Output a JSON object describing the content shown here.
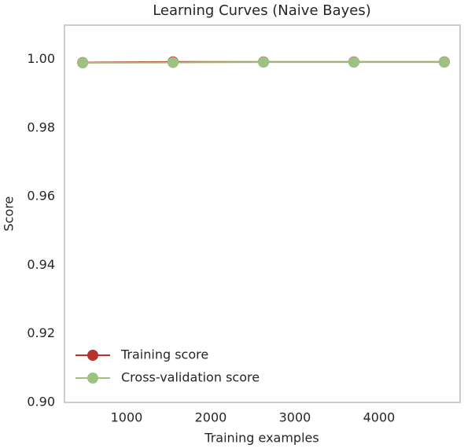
{
  "chart_data": {
    "type": "line",
    "title": "Learning Curves (Naive Bayes)",
    "x_label": "Training examples",
    "y_label": "Score",
    "x": [
      478,
      1552,
      2627,
      3701,
      4776
    ],
    "series": [
      {
        "name": "Training score",
        "color": "#b8322a",
        "values": [
          0.9991,
          0.9993,
          0.9993,
          0.9993,
          0.9993
        ]
      },
      {
        "name": "Cross-validation score",
        "color": "#9dc183",
        "values": [
          0.999,
          0.9991,
          0.9992,
          0.9992,
          0.9992
        ]
      }
    ],
    "xlim": [
      262,
      4963
    ],
    "xticks": [
      1000,
      2000,
      3000,
      4000
    ],
    "ylim": [
      0.9,
      1.01
    ],
    "yticks": [
      {
        "value": 0.9,
        "label": "0.90"
      },
      {
        "value": 0.92,
        "label": "0.92"
      },
      {
        "value": 0.94,
        "label": "0.94"
      },
      {
        "value": 0.96,
        "label": "0.96"
      },
      {
        "value": 0.98,
        "label": "0.98"
      },
      {
        "value": 1.0,
        "label": "1.00"
      }
    ],
    "grid": false,
    "legend": "lower left"
  }
}
